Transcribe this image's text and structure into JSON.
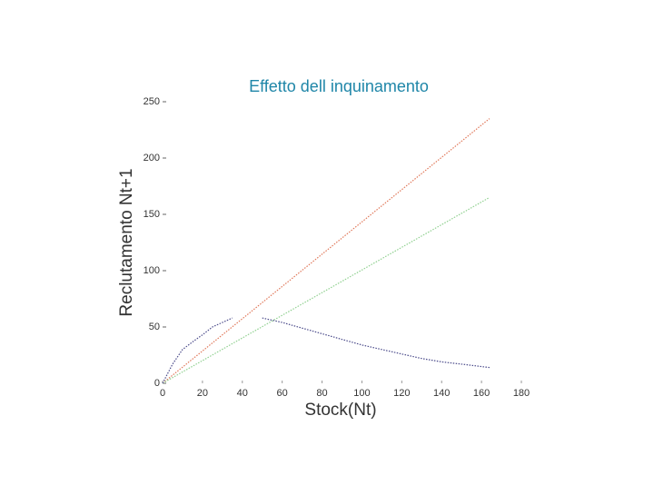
{
  "chart_data": {
    "type": "line",
    "title": "Effetto dell inquinamento",
    "x_label": "Stock(Nt)",
    "y_label": "Reclutamento Nt+1",
    "series": [
      {
        "color": "#e0785a",
        "x": [
          0,
          164
        ],
        "values": [
          0,
          235
        ]
      },
      {
        "color": "#8fd08f",
        "x": [
          0,
          164
        ],
        "values": [
          0,
          165
        ]
      },
      {
        "color": "#4a4a8a",
        "x": [
          0,
          5,
          10,
          16,
          20,
          25,
          30,
          35,
          42,
          50,
          60,
          70,
          80,
          90,
          100,
          110,
          120,
          130,
          140,
          150,
          164
        ],
        "values": [
          0,
          17,
          30,
          38,
          43,
          50,
          54,
          58,
          null,
          58,
          54,
          49,
          44,
          39,
          34,
          30,
          26,
          22,
          19,
          17,
          14
        ]
      }
    ],
    "xlim": [
      0,
      180
    ],
    "xticks": [
      0,
      20,
      40,
      60,
      80,
      100,
      120,
      140,
      160,
      180
    ],
    "ylim": [
      0,
      250
    ],
    "yticks": [
      0,
      50,
      100,
      150,
      200,
      250
    ]
  }
}
